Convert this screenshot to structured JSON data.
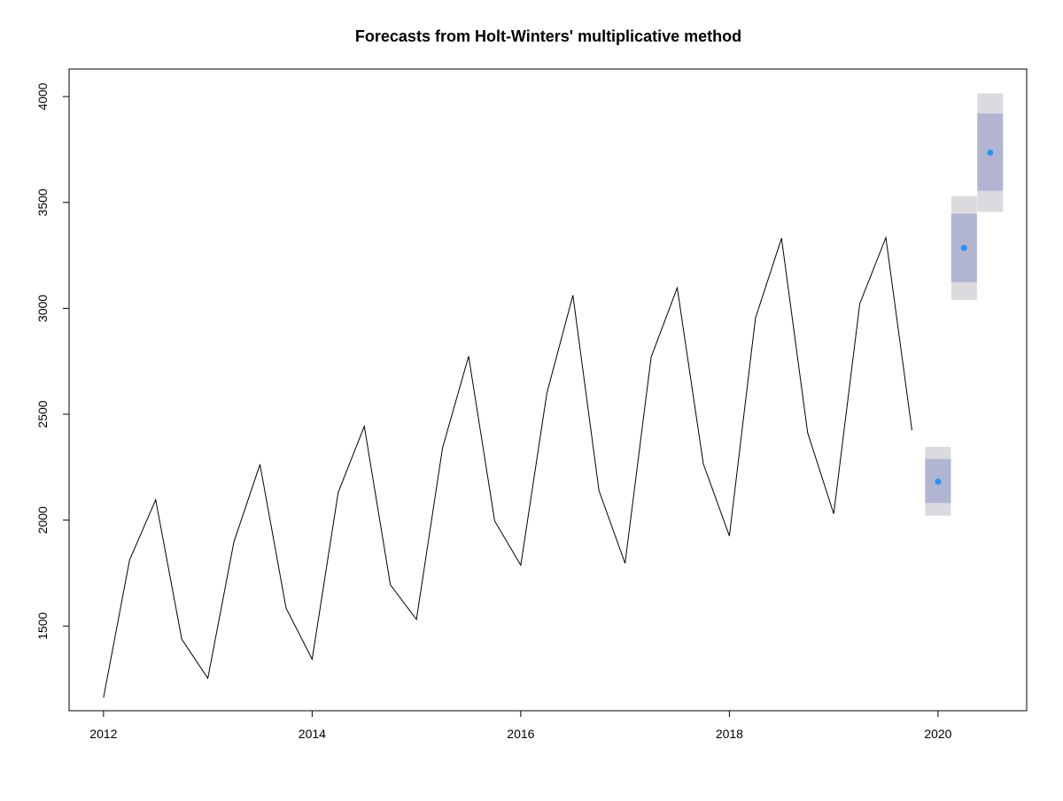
{
  "chart_data": {
    "type": "line",
    "title": "Forecasts from Holt-Winters' multiplicative method",
    "xlabel": "",
    "ylabel": "",
    "xlim": [
      2011.67,
      2020.85
    ],
    "ylim": [
      1100,
      4130
    ],
    "x_ticks": [
      2012,
      2014,
      2016,
      2018,
      2020
    ],
    "y_ticks": [
      1500,
      2000,
      2500,
      3000,
      3500,
      4000
    ],
    "grid": false,
    "legend": "none",
    "colors": {
      "series": "#000000",
      "forecast_point": "#2196F3",
      "interval_80": "#B1B5D1",
      "interval_95": "#DBDBDF"
    },
    "series": [
      {
        "x": [
          2012.0,
          2012.25,
          2012.5,
          2012.75,
          2013.0,
          2013.25,
          2013.5,
          2013.75,
          2014.0,
          2014.25,
          2014.5,
          2014.75,
          2015.0,
          2015.25,
          2015.5,
          2015.75,
          2016.0,
          2016.25,
          2016.5,
          2016.75,
          2017.0,
          2017.25,
          2017.5,
          2017.75,
          2018.0,
          2018.25,
          2018.5,
          2018.75,
          2019.0,
          2019.25,
          2019.5,
          2019.75
        ],
        "y": [
          1162,
          1812,
          2096,
          1438,
          1253,
          1897,
          2263,
          1585,
          1343,
          2131,
          2443,
          1695,
          1531,
          2341,
          2774,
          1996,
          1787,
          2599,
          3062,
          2139,
          1796,
          2770,
          3097,
          2266,
          1925,
          2954,
          3331,
          2413,
          2030,
          3022,
          3334,
          2424
        ]
      }
    ],
    "forecast": [
      {
        "x": 2020.0,
        "mean": 2182,
        "lo80": 2081,
        "hi80": 2289,
        "lo95": 2021,
        "hi95": 2346
      },
      {
        "x": 2020.25,
        "mean": 3285,
        "lo80": 3124,
        "hi80": 3447,
        "lo95": 3040,
        "hi95": 3530
      },
      {
        "x": 2020.5,
        "mean": 3735,
        "lo80": 3555,
        "hi80": 3920,
        "lo95": 3455,
        "hi95": 4015
      }
    ]
  }
}
